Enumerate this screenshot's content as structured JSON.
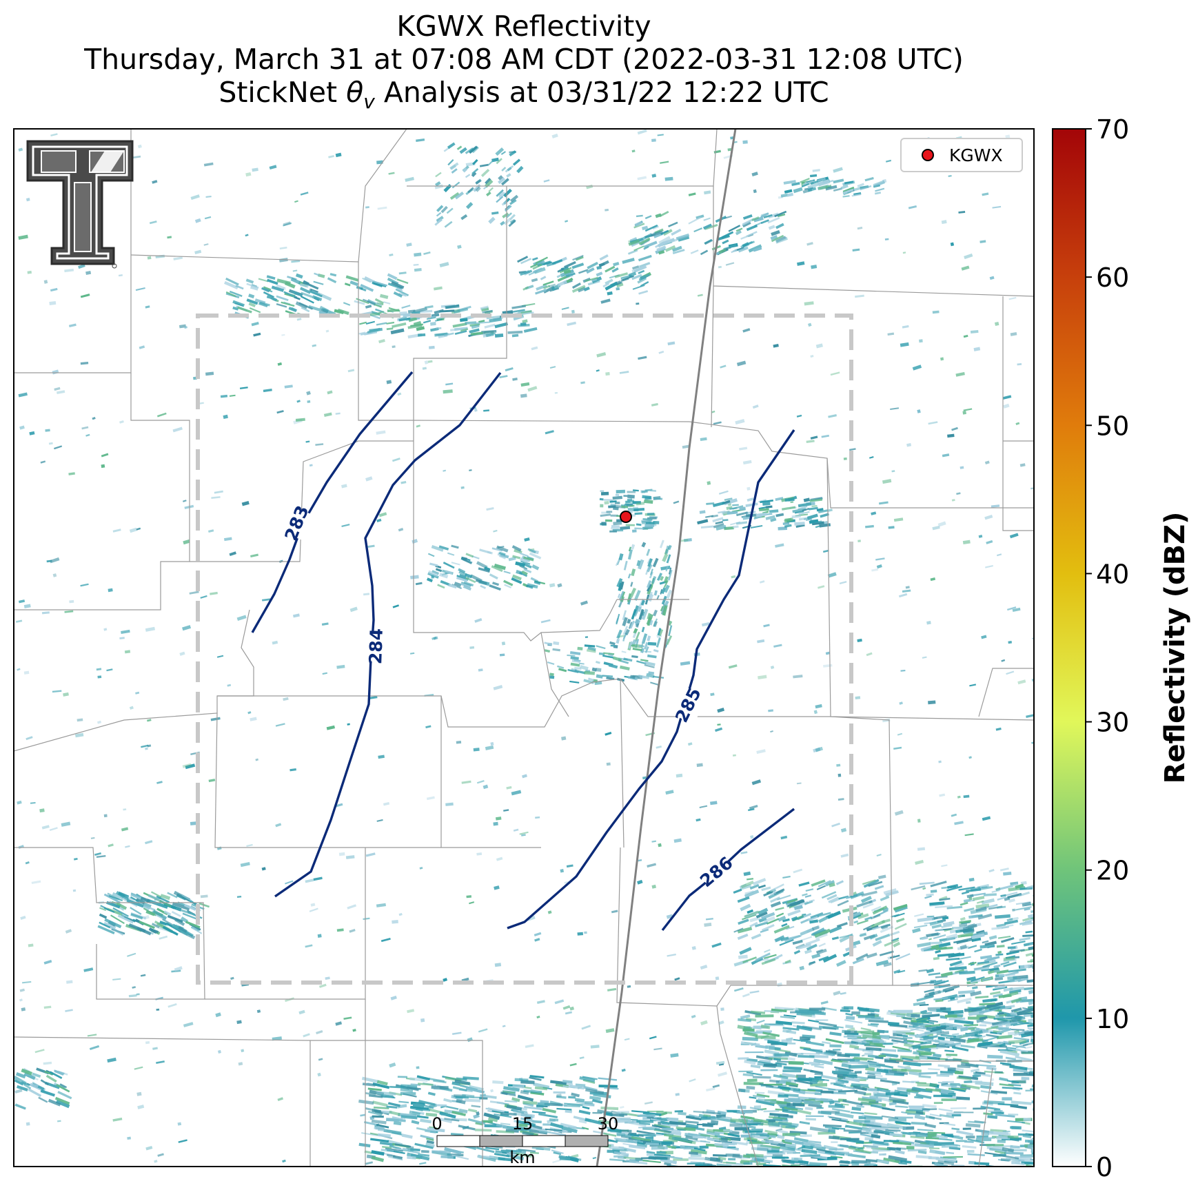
{
  "title": {
    "line1": "KGWX Reflectivity",
    "line2": "Thursday, March 31 at 07:08 AM CDT (2022-03-31 12:08 UTC)",
    "line3_prefix": "StickNet ",
    "line3_symbol": "θ",
    "line3_sub": "v",
    "line3_suffix": " Analysis at 03/31/22 12:22 UTC"
  },
  "legend": {
    "label": "KGWX",
    "marker_color": "#e8141b"
  },
  "contours": [
    {
      "label": "283"
    },
    {
      "label": "284"
    },
    {
      "label": "285"
    },
    {
      "label": "286"
    }
  ],
  "contour_color": "#0b2a78",
  "scalebar": {
    "ticks": [
      "0",
      "15",
      "30"
    ],
    "unit": "km"
  },
  "colorbar": {
    "label": "Reflectivity (dBZ)",
    "min": 0,
    "max": 70,
    "ticks": [
      "0",
      "10",
      "20",
      "30",
      "40",
      "50",
      "60",
      "70"
    ],
    "stops": [
      {
        "value": 0,
        "color": "#ffffff"
      },
      {
        "value": 10,
        "color": "#1f97ab"
      },
      {
        "value": 20,
        "color": "#6fc47a"
      },
      {
        "value": 30,
        "color": "#e1f75a"
      },
      {
        "value": 40,
        "color": "#e2be0f"
      },
      {
        "value": 50,
        "color": "#e07c0c"
      },
      {
        "value": 60,
        "color": "#c7400c"
      },
      {
        "value": 70,
        "color": "#a30508"
      }
    ]
  },
  "logo": {
    "symbol": "double-T"
  },
  "echo_colors": [
    "#2a9aab",
    "#4aa8b7",
    "#7fbfd0",
    "#a6d0e0",
    "#5cb78a",
    "#3a8fa2"
  ],
  "analysis_box_color": "#c8c8c8"
}
